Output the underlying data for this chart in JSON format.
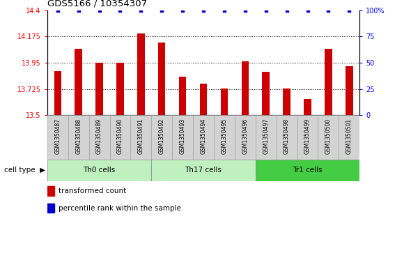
{
  "title": "GDS5166 / 10354307",
  "samples": [
    "GSM1350487",
    "GSM1350488",
    "GSM1350489",
    "GSM1350490",
    "GSM1350491",
    "GSM1350492",
    "GSM1350493",
    "GSM1350494",
    "GSM1350495",
    "GSM1350496",
    "GSM1350497",
    "GSM1350498",
    "GSM1350499",
    "GSM1350500",
    "GSM1350501"
  ],
  "values": [
    13.88,
    14.07,
    13.95,
    13.95,
    14.2,
    14.12,
    13.83,
    13.77,
    13.73,
    13.96,
    13.87,
    13.73,
    13.64,
    14.07,
    13.92
  ],
  "ylim_left": [
    13.5,
    14.4
  ],
  "ylim_right": [
    0,
    100
  ],
  "yticks_left": [
    13.5,
    13.725,
    13.95,
    14.175,
    14.4
  ],
  "yticks_right": [
    0,
    25,
    50,
    75,
    100
  ],
  "ytick_labels_left": [
    "13.5",
    "13.725",
    "13.95",
    "14.175",
    "14.4"
  ],
  "ytick_labels_right": [
    "0",
    "25",
    "50",
    "75",
    "100%"
  ],
  "bar_color": "#cc0000",
  "dot_color": "#0000cc",
  "plot_bg_color": "#ffffff",
  "sample_bg_color": "#d3d3d3",
  "cell_groups": [
    {
      "label": "Th0 cells",
      "start": 0,
      "end": 4,
      "color": "#c0f0c0"
    },
    {
      "label": "Th17 cells",
      "start": 5,
      "end": 9,
      "color": "#c0f0c0"
    },
    {
      "label": "Tr1 cells",
      "start": 10,
      "end": 14,
      "color": "#44cc44"
    }
  ],
  "legend_items": [
    {
      "label": "transformed count",
      "color": "#cc0000"
    },
    {
      "label": "percentile rank within the sample",
      "color": "#0000cc"
    }
  ],
  "cell_type_label": "cell type",
  "dotted_gridlines": [
    13.725,
    13.95,
    14.175
  ],
  "bar_width": 0.35
}
